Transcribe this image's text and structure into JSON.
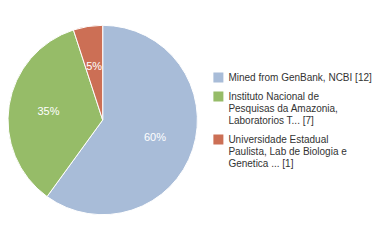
{
  "chart_data": {
    "type": "pie",
    "categories": [
      "Mined from GenBank, NCBI [12]",
      "Instituto Nacional de\nPesquisas da Amazonia,\nLaboratorios T... [7]",
      "Universidade Estadual\nPaulista, Lab de Biologia e\nGenetica ... [1]"
    ],
    "values": [
      60,
      35,
      5
    ],
    "value_labels": [
      "60%",
      "35%",
      "5%"
    ],
    "colors": [
      "#a8bcd8",
      "#96bc68",
      "#cc6f55"
    ],
    "data_labels": true,
    "legend": "right"
  }
}
